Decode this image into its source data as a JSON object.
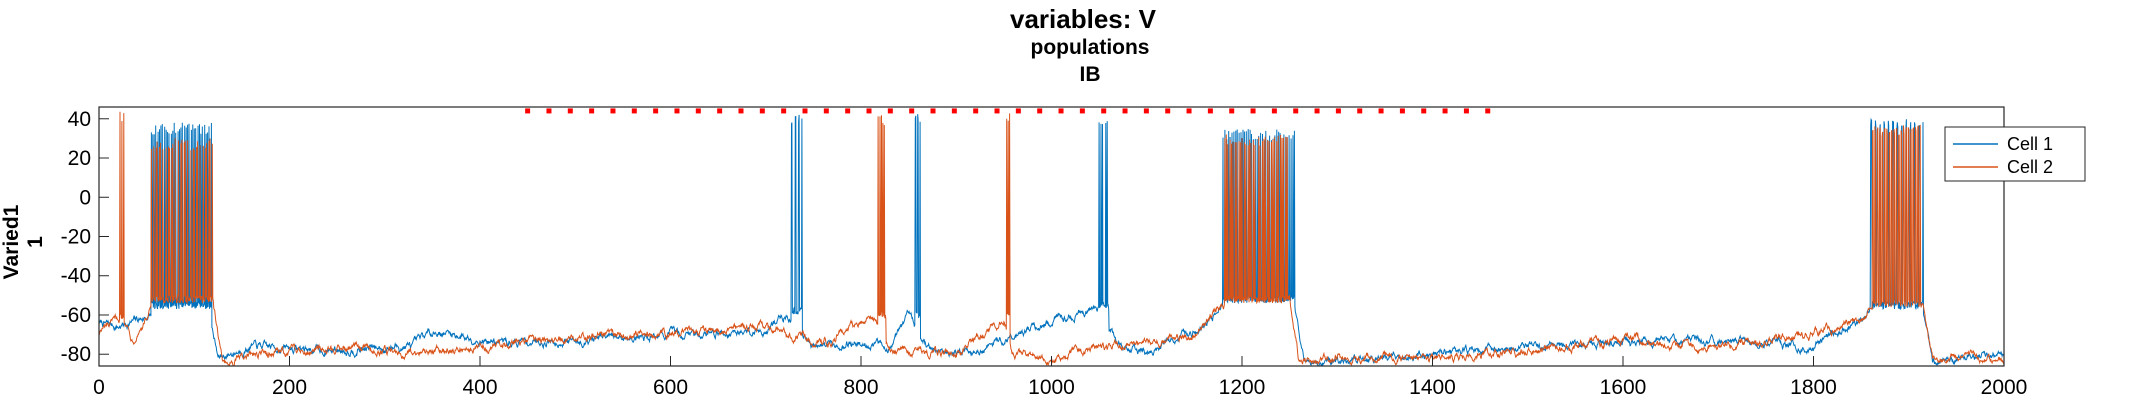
{
  "chart_data": {
    "type": "line",
    "title_lines": [
      "variables: V",
      "populations",
      "IB"
    ],
    "ylabel_lines": [
      "Varied1",
      "1"
    ],
    "xlabel": "",
    "xlim": [
      0,
      2000
    ],
    "ylim": [
      -86,
      46
    ],
    "x_ticks": [
      0,
      200,
      400,
      600,
      800,
      1000,
      1200,
      1400,
      1600,
      1800,
      2000
    ],
    "y_ticks": [
      -80,
      -60,
      -40,
      -20,
      0,
      20,
      40
    ],
    "grid": false,
    "legend_position": "top-right",
    "series": [
      {
        "name": "Cell 1",
        "color": "#0072BD",
        "baseline": [
          [
            0,
            -64
          ],
          [
            20,
            -66
          ],
          [
            45,
            -62
          ],
          [
            55,
            -60
          ],
          [
            60,
            -58
          ],
          [
            115,
            -58
          ],
          [
            125,
            -82
          ],
          [
            160,
            -76
          ],
          [
            240,
            -78
          ],
          [
            330,
            -76
          ],
          [
            350,
            -68
          ],
          [
            420,
            -74
          ],
          [
            500,
            -73
          ],
          [
            600,
            -70
          ],
          [
            700,
            -68
          ],
          [
            720,
            -60
          ],
          [
            750,
            -76
          ],
          [
            800,
            -74
          ],
          [
            830,
            -76
          ],
          [
            850,
            -60
          ],
          [
            870,
            -77
          ],
          [
            920,
            -80
          ],
          [
            950,
            -72
          ],
          [
            1000,
            -64
          ],
          [
            1050,
            -56
          ],
          [
            1070,
            -74
          ],
          [
            1100,
            -80
          ],
          [
            1150,
            -68
          ],
          [
            1175,
            -60
          ],
          [
            1180,
            -52
          ],
          [
            1255,
            -55
          ],
          [
            1265,
            -83
          ],
          [
            1300,
            -85
          ],
          [
            1400,
            -80
          ],
          [
            1500,
            -76
          ],
          [
            1600,
            -74
          ],
          [
            1700,
            -73
          ],
          [
            1800,
            -76
          ],
          [
            1855,
            -62
          ],
          [
            1860,
            -55
          ],
          [
            1915,
            -58
          ],
          [
            1925,
            -85
          ],
          [
            1960,
            -80
          ],
          [
            2000,
            -80
          ]
        ],
        "bursts": [
          {
            "start": 55,
            "end": 118,
            "peak": 38,
            "trough": -55,
            "count": 45
          },
          {
            "start": 727,
            "end": 738,
            "peak": 43,
            "trough": -58,
            "count": 3
          },
          {
            "start": 857,
            "end": 862,
            "peak": 43,
            "trough": -60,
            "count": 2
          },
          {
            "start": 1050,
            "end": 1060,
            "peak": 41,
            "trough": -55,
            "count": 6
          },
          {
            "start": 1180,
            "end": 1255,
            "peak": 35,
            "trough": -52,
            "count": 40
          },
          {
            "start": 1860,
            "end": 1915,
            "peak": 40,
            "trough": -55,
            "count": 12
          }
        ]
      },
      {
        "name": "Cell 2",
        "color": "#D95319",
        "baseline": [
          [
            0,
            -68
          ],
          [
            15,
            -65
          ],
          [
            25,
            -60
          ],
          [
            35,
            -72
          ],
          [
            50,
            -62
          ],
          [
            55,
            -56
          ],
          [
            120,
            -56
          ],
          [
            130,
            -84
          ],
          [
            170,
            -80
          ],
          [
            240,
            -76
          ],
          [
            330,
            -79
          ],
          [
            420,
            -75
          ],
          [
            500,
            -72
          ],
          [
            600,
            -69
          ],
          [
            700,
            -66
          ],
          [
            760,
            -74
          ],
          [
            815,
            -62
          ],
          [
            830,
            -78
          ],
          [
            900,
            -80
          ],
          [
            950,
            -62
          ],
          [
            960,
            -80
          ],
          [
            1000,
            -82
          ],
          [
            1050,
            -76
          ],
          [
            1100,
            -74
          ],
          [
            1150,
            -70
          ],
          [
            1180,
            -54
          ],
          [
            1250,
            -54
          ],
          [
            1260,
            -84
          ],
          [
            1300,
            -82
          ],
          [
            1400,
            -82
          ],
          [
            1500,
            -78
          ],
          [
            1600,
            -73
          ],
          [
            1700,
            -76
          ],
          [
            1800,
            -70
          ],
          [
            1855,
            -60
          ],
          [
            1860,
            -55
          ],
          [
            1915,
            -56
          ],
          [
            1925,
            -83
          ],
          [
            1960,
            -82
          ],
          [
            2000,
            -83
          ]
        ],
        "bursts": [
          {
            "start": 22,
            "end": 26,
            "peak": 44,
            "trough": -60,
            "count": 2
          },
          {
            "start": 55,
            "end": 120,
            "peak": 30,
            "trough": -52,
            "count": 55
          },
          {
            "start": 818,
            "end": 826,
            "peak": 42,
            "trough": -60,
            "count": 5
          },
          {
            "start": 953,
            "end": 956,
            "peak": 43,
            "trough": -60,
            "count": 2
          },
          {
            "start": 1182,
            "end": 1250,
            "peak": 32,
            "trough": -52,
            "count": 50
          },
          {
            "start": 1862,
            "end": 1912,
            "peak": 37,
            "trough": -54,
            "count": 20
          }
        ]
      }
    ],
    "markers": {
      "color": "#FF0000",
      "y": 44,
      "x_start": 450,
      "x_end": 1480,
      "step": 22.4
    }
  }
}
